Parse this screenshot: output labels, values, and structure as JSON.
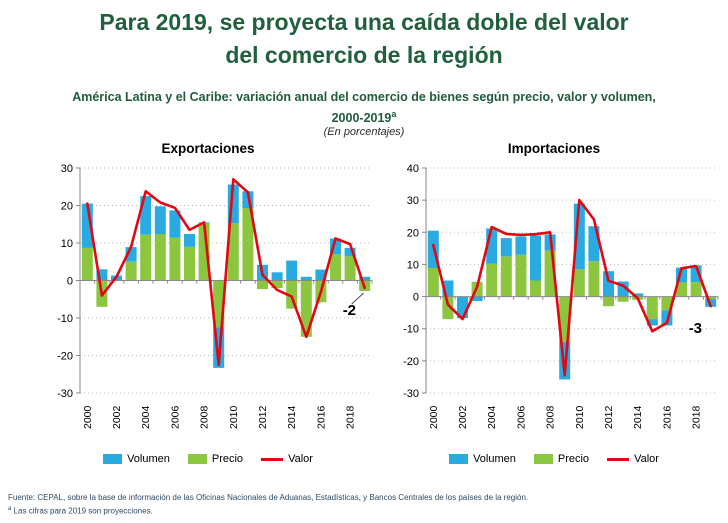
{
  "page": {
    "title": "Para 2019, se proyecta una caída doble del valor del comercio de la región",
    "subtitle_line1": "América Latina y el Caribe: variación anual del comercio de bienes según precio, valor y volumen,",
    "subtitle_line2": "2000-2019",
    "subtitle_sup": "a",
    "units_note": "(En porcentajes)",
    "footer_source": "Fuente: CEPAL, sobre la base de información de las Oficinas Nacionales de Aduanas, Estadísticas, y Bancos Centrales de los países de la región.",
    "footnote_sup": "a",
    "footnote_text": "Las cifras para 2019 son proyecciones."
  },
  "colors": {
    "title_green": "#20603C",
    "subtitle_green": "#1E5C3A",
    "volumen_blue": "#29ABE2",
    "precio_green": "#8CC63E",
    "valor_red": "#E30613",
    "footer_navy": "#2E4A62",
    "grid_gray": "#b7b7b7",
    "axis_gray": "#898989"
  },
  "chart_data": [
    {
      "type": "bar+line",
      "title": "Exportaciones",
      "categories": [
        "2000",
        "2001",
        "2002",
        "2003",
        "2004",
        "2005",
        "2006",
        "2007",
        "2008",
        "2009",
        "2010",
        "2011",
        "2012",
        "2013",
        "2014",
        "2015",
        "2016",
        "2017",
        "2018",
        "2019"
      ],
      "x_tick_labels": [
        "2000",
        "2002",
        "2004",
        "2006",
        "2008",
        "2010",
        "2012",
        "2014",
        "2016",
        "2018"
      ],
      "ylim": [
        -30,
        30
      ],
      "ytick_step": 10,
      "grid": true,
      "legend_position": "bottom",
      "series": [
        {
          "name": "Volumen",
          "color_key": "volumen_blue",
          "values": [
            11.8,
            3.0,
            1.3,
            3.9,
            10.3,
            7.4,
            7.3,
            3.4,
            0.2,
            -10.8,
            10.3,
            4.5,
            4.2,
            2.2,
            5.3,
            1.0,
            2.9,
            4.2,
            2.2,
            1.0
          ]
        },
        {
          "name": "Precio",
          "color_key": "precio_green",
          "values": [
            8.7,
            -7.0,
            0.0,
            5.0,
            12.2,
            12.4,
            11.4,
            9.0,
            15.3,
            -12.5,
            15.3,
            19.3,
            -2.3,
            -2.0,
            -7.5,
            -15.0,
            -5.8,
            7.0,
            6.5,
            -2.8
          ]
        }
      ],
      "line": {
        "name": "Valor",
        "color_key": "valor_red",
        "values": [
          20.5,
          -4.0,
          1.0,
          9.0,
          23.8,
          20.8,
          19.4,
          13.5,
          15.5,
          -22.5,
          27.0,
          23.5,
          1.5,
          -2.5,
          -4.3,
          -15.0,
          -3.0,
          11.2,
          9.7,
          -2.0
        ]
      },
      "annotation": {
        "label": "-2",
        "callout": true
      }
    },
    {
      "type": "bar+line",
      "title": "Importaciones",
      "categories": [
        "2000",
        "2001",
        "2002",
        "2003",
        "2004",
        "2005",
        "2006",
        "2007",
        "2008",
        "2009",
        "2010",
        "2011",
        "2012",
        "2013",
        "2014",
        "2015",
        "2016",
        "2017",
        "2018",
        "2019"
      ],
      "x_tick_labels": [
        "2000",
        "2002",
        "2004",
        "2006",
        "2008",
        "2010",
        "2012",
        "2014",
        "2016",
        "2018"
      ],
      "ylim": [
        -30,
        40
      ],
      "ytick_step": 10,
      "grid": true,
      "legend_position": "bottom",
      "series": [
        {
          "name": "Volumen",
          "color_key": "volumen_blue",
          "values": [
            11.6,
            5.0,
            -6.7,
            -1.4,
            11.0,
            5.7,
            5.7,
            14.0,
            5.0,
            -11.7,
            20.4,
            10.9,
            7.9,
            4.7,
            1.0,
            -2.0,
            -4.7,
            4.6,
            5.2,
            -2.4
          ]
        },
        {
          "name": "Precio",
          "color_key": "precio_green",
          "values": [
            8.9,
            -7.0,
            0.0,
            4.6,
            10.2,
            12.5,
            13.0,
            5.0,
            14.3,
            -14.1,
            8.5,
            11.0,
            -3.0,
            -1.6,
            -1.0,
            -7.0,
            -4.3,
            4.4,
            4.5,
            -0.8
          ]
        }
      ],
      "line": {
        "name": "Valor",
        "color_key": "valor_red",
        "values": [
          16.0,
          -2.5,
          -7.0,
          3.0,
          21.6,
          19.5,
          19.2,
          19.4,
          20.0,
          -24.5,
          30.0,
          24.0,
          4.9,
          3.4,
          -0.5,
          -10.8,
          -8.2,
          8.8,
          9.5,
          -3.0
        ]
      },
      "annotation": {
        "label": "-3",
        "callout": false
      }
    }
  ]
}
